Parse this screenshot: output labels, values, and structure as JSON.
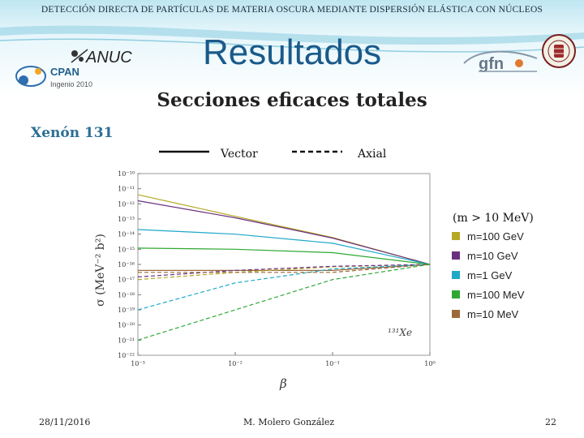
{
  "header": {
    "banner": "DETECCIÓN DIRECTA DE PARTÍCULAS DE MATERIA OSCURA MEDIANTE DISPERSIÓN ELÁSTICA CON NÚCLEOS",
    "title": "Resultados"
  },
  "logos": {
    "anuc": "ANUC",
    "cpan": "CPAN",
    "cpan_sub": "Ingenio 2010",
    "gfn": "gfn"
  },
  "subtitle": "Secciones eficaces totales",
  "section_label": "Xenón 131",
  "legend_style": {
    "solid": "Vector",
    "dashed": "Axial"
  },
  "legend_mass": {
    "title": "(m > 10 MeV)",
    "entries": [
      "m=100 GeV",
      "m=10 GeV",
      "m=1 GeV",
      "m=100 MeV",
      "m=10 MeV"
    ],
    "colors": [
      "#b5a823",
      "#6b2f80",
      "#1fa8c8",
      "#2ea832",
      "#9b6a3a"
    ]
  },
  "footer": {
    "date": "28/11/2016",
    "author": "M. Molero González",
    "page": "22"
  },
  "chart_data": {
    "type": "line",
    "xlabel": "β",
    "ylabel": "σ (MeV⁻² b²)",
    "x_scale": "log",
    "y_scale": "log",
    "xlim": [
      0.001,
      1
    ],
    "ylim": [
      1e-22,
      1e-10
    ],
    "x_ticks": [
      "10⁻³",
      "10⁻²",
      "10⁻¹",
      "10⁰"
    ],
    "y_ticks": [
      "10⁻¹⁰",
      "10⁻¹¹",
      "10⁻¹²",
      "10⁻¹³",
      "10⁻¹⁴",
      "10⁻¹⁵",
      "10⁻¹⁶",
      "10⁻¹⁷",
      "10⁻¹⁸",
      "10⁻¹⁹",
      "10⁻²⁰",
      "10⁻²¹",
      "10⁻²²"
    ],
    "annotation": "¹³¹Xe",
    "grid": false,
    "series": [
      {
        "name": "m=100 GeV",
        "style": "solid",
        "color": "#b5a823",
        "x": [
          0.001,
          0.01,
          0.1,
          1
        ],
        "y": [
          4e-12,
          1.5e-13,
          6e-15,
          1e-16
        ]
      },
      {
        "name": "m=10 GeV",
        "style": "solid",
        "color": "#6b2f80",
        "x": [
          0.001,
          0.01,
          0.1,
          1
        ],
        "y": [
          1.6e-12,
          1.2e-13,
          5.5e-15,
          1e-16
        ]
      },
      {
        "name": "m=1 GeV",
        "style": "solid",
        "color": "#1fa8c8",
        "x": [
          0.001,
          0.01,
          0.1,
          1
        ],
        "y": [
          2e-14,
          1e-14,
          2.5e-15,
          1e-16
        ]
      },
      {
        "name": "m=100 MeV",
        "style": "solid",
        "color": "#2ea832",
        "x": [
          0.001,
          0.01,
          0.1,
          1
        ],
        "y": [
          1.2e-15,
          1e-15,
          6e-16,
          1e-16
        ]
      },
      {
        "name": "m=10 MeV",
        "style": "solid",
        "color": "#9b6a3a",
        "x": [
          0.001,
          0.01,
          0.1,
          1
        ],
        "y": [
          4e-17,
          4e-17,
          4e-17,
          1e-16
        ]
      },
      {
        "name": "m=100 GeV",
        "style": "dashed",
        "color": "#b5a823",
        "x": [
          0.001,
          0.01,
          0.1,
          1
        ],
        "y": [
          1e-17,
          3e-17,
          7e-17,
          1e-16
        ]
      },
      {
        "name": "m=10 GeV",
        "style": "dashed",
        "color": "#6b2f80",
        "x": [
          0.001,
          0.01,
          0.1,
          1
        ],
        "y": [
          1.5e-17,
          4e-17,
          7.5e-17,
          1e-16
        ]
      },
      {
        "name": "m=1 GeV",
        "style": "dashed",
        "color": "#1fa8c8",
        "x": [
          0.001,
          0.01,
          0.1,
          1
        ],
        "y": [
          1e-19,
          6e-18,
          5e-17,
          1e-16
        ]
      },
      {
        "name": "m=100 MeV",
        "style": "dashed",
        "color": "#2ea832",
        "x": [
          0.001,
          0.01,
          0.1,
          1
        ],
        "y": [
          1e-21,
          1e-19,
          1e-17,
          1e-16
        ]
      },
      {
        "name": "m=10 MeV",
        "style": "dashed",
        "color": "#9b6a3a",
        "x": [
          0.001,
          0.01,
          0.1,
          1
        ],
        "y": [
          3e-17,
          3e-17,
          3e-17,
          1e-16
        ]
      }
    ]
  }
}
